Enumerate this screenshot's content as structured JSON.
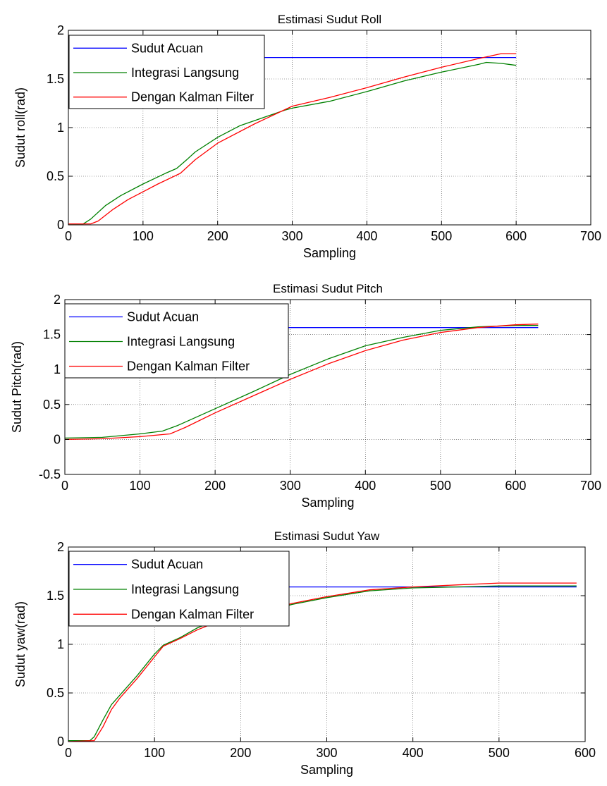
{
  "colors": {
    "sudut_acuan": "#0000ff",
    "integrasi_langsung": "#008000",
    "kalman_filter": "#ff0000"
  },
  "chart_data": [
    {
      "type": "line",
      "title": "Estimasi Sudut Roll",
      "xlabel": "Sampling",
      "ylabel": "Sudut roll(rad)",
      "xlim": [
        0,
        700
      ],
      "ylim": [
        0,
        2
      ],
      "xticks": [
        0,
        100,
        200,
        300,
        400,
        500,
        600,
        700
      ],
      "yticks": [
        0,
        0.5,
        1,
        1.5,
        2
      ],
      "ytick_labels": [
        "0",
        "0.5",
        "1",
        "1.5",
        "2"
      ],
      "grid": true,
      "legend_position": "top-left",
      "series": [
        {
          "name": "Sudut Acuan",
          "color": "#0000ff",
          "x": [
            0,
            600
          ],
          "y": [
            1.72,
            1.72
          ]
        },
        {
          "name": "Integrasi Langsung",
          "color": "#008000",
          "x": [
            0,
            20,
            30,
            50,
            70,
            100,
            130,
            145,
            160,
            170,
            200,
            230,
            260,
            290,
            300,
            350,
            400,
            450,
            500,
            550,
            560,
            580,
            590,
            600
          ],
          "y": [
            0.01,
            0.01,
            0.06,
            0.2,
            0.3,
            0.42,
            0.53,
            0.58,
            0.68,
            0.75,
            0.9,
            1.02,
            1.1,
            1.18,
            1.2,
            1.27,
            1.37,
            1.48,
            1.57,
            1.65,
            1.67,
            1.66,
            1.65,
            1.64
          ]
        },
        {
          "name": "Dengan Kalman Filter",
          "color": "#ff0000",
          "x": [
            0,
            30,
            40,
            60,
            80,
            100,
            120,
            150,
            170,
            200,
            250,
            300,
            350,
            400,
            450,
            500,
            550,
            580,
            600
          ],
          "y": [
            0.01,
            0.01,
            0.04,
            0.16,
            0.26,
            0.34,
            0.42,
            0.53,
            0.67,
            0.84,
            1.04,
            1.22,
            1.31,
            1.41,
            1.52,
            1.62,
            1.71,
            1.76,
            1.76
          ]
        }
      ]
    },
    {
      "type": "line",
      "title": "Estimasi Sudut Pitch",
      "xlabel": "Sampling",
      "ylabel": "Sudut Pitch(rad)",
      "xlim": [
        0,
        700
      ],
      "ylim": [
        -0.5,
        2
      ],
      "xticks": [
        0,
        100,
        200,
        300,
        400,
        500,
        600,
        700
      ],
      "yticks": [
        -0.5,
        0,
        0.5,
        1,
        1.5,
        2
      ],
      "ytick_labels": [
        "-0.5",
        "0",
        "0.5",
        "1",
        "1.5",
        "2"
      ],
      "grid": true,
      "legend_position": "top-left",
      "series": [
        {
          "name": "Sudut Acuan",
          "color": "#0000ff",
          "x": [
            0,
            630
          ],
          "y": [
            1.6,
            1.6
          ]
        },
        {
          "name": "Integrasi Langsung",
          "color": "#008000",
          "x": [
            0,
            50,
            100,
            130,
            150,
            200,
            250,
            300,
            350,
            400,
            450,
            500,
            550,
            600,
            630
          ],
          "y": [
            0.02,
            0.03,
            0.08,
            0.12,
            0.2,
            0.44,
            0.68,
            0.93,
            1.15,
            1.34,
            1.46,
            1.56,
            1.61,
            1.63,
            1.63
          ]
        },
        {
          "name": "Dengan Kalman Filter",
          "color": "#ff0000",
          "x": [
            0,
            50,
            100,
            140,
            160,
            200,
            250,
            300,
            350,
            400,
            450,
            500,
            550,
            600,
            630
          ],
          "y": [
            0.0,
            0.01,
            0.04,
            0.08,
            0.17,
            0.38,
            0.62,
            0.86,
            1.08,
            1.27,
            1.42,
            1.53,
            1.6,
            1.64,
            1.65
          ]
        }
      ]
    },
    {
      "type": "line",
      "title": "Estimasi Sudut Yaw",
      "xlabel": "Sampling",
      "ylabel": "Sudut yaw(rad)",
      "xlim": [
        0,
        600
      ],
      "ylim": [
        0,
        2
      ],
      "xticks": [
        0,
        100,
        200,
        300,
        400,
        500,
        600
      ],
      "yticks": [
        0,
        0.5,
        1,
        1.5,
        2
      ],
      "ytick_labels": [
        "0",
        "0.5",
        "1",
        "1.5",
        "2"
      ],
      "grid": true,
      "legend_position": "top-left",
      "series": [
        {
          "name": "Sudut Acuan",
          "color": "#0000ff",
          "x": [
            0,
            590
          ],
          "y": [
            1.59,
            1.59
          ]
        },
        {
          "name": "Integrasi Langsung",
          "color": "#008000",
          "x": [
            0,
            25,
            30,
            40,
            50,
            60,
            80,
            100,
            110,
            130,
            150,
            170,
            200,
            230,
            260,
            300,
            350,
            400,
            450,
            500,
            590
          ],
          "y": [
            0.01,
            0.01,
            0.05,
            0.22,
            0.38,
            0.48,
            0.68,
            0.9,
            0.99,
            1.07,
            1.17,
            1.24,
            1.3,
            1.34,
            1.41,
            1.48,
            1.55,
            1.58,
            1.59,
            1.6,
            1.6
          ]
        },
        {
          "name": "Dengan Kalman Filter",
          "color": "#ff0000",
          "x": [
            0,
            30,
            40,
            50,
            60,
            80,
            100,
            110,
            130,
            150,
            170,
            200,
            230,
            260,
            300,
            350,
            400,
            450,
            500,
            590
          ],
          "y": [
            0.0,
            0.01,
            0.15,
            0.33,
            0.45,
            0.65,
            0.87,
            0.98,
            1.06,
            1.15,
            1.22,
            1.3,
            1.35,
            1.42,
            1.49,
            1.56,
            1.59,
            1.61,
            1.63,
            1.63
          ]
        }
      ]
    }
  ]
}
